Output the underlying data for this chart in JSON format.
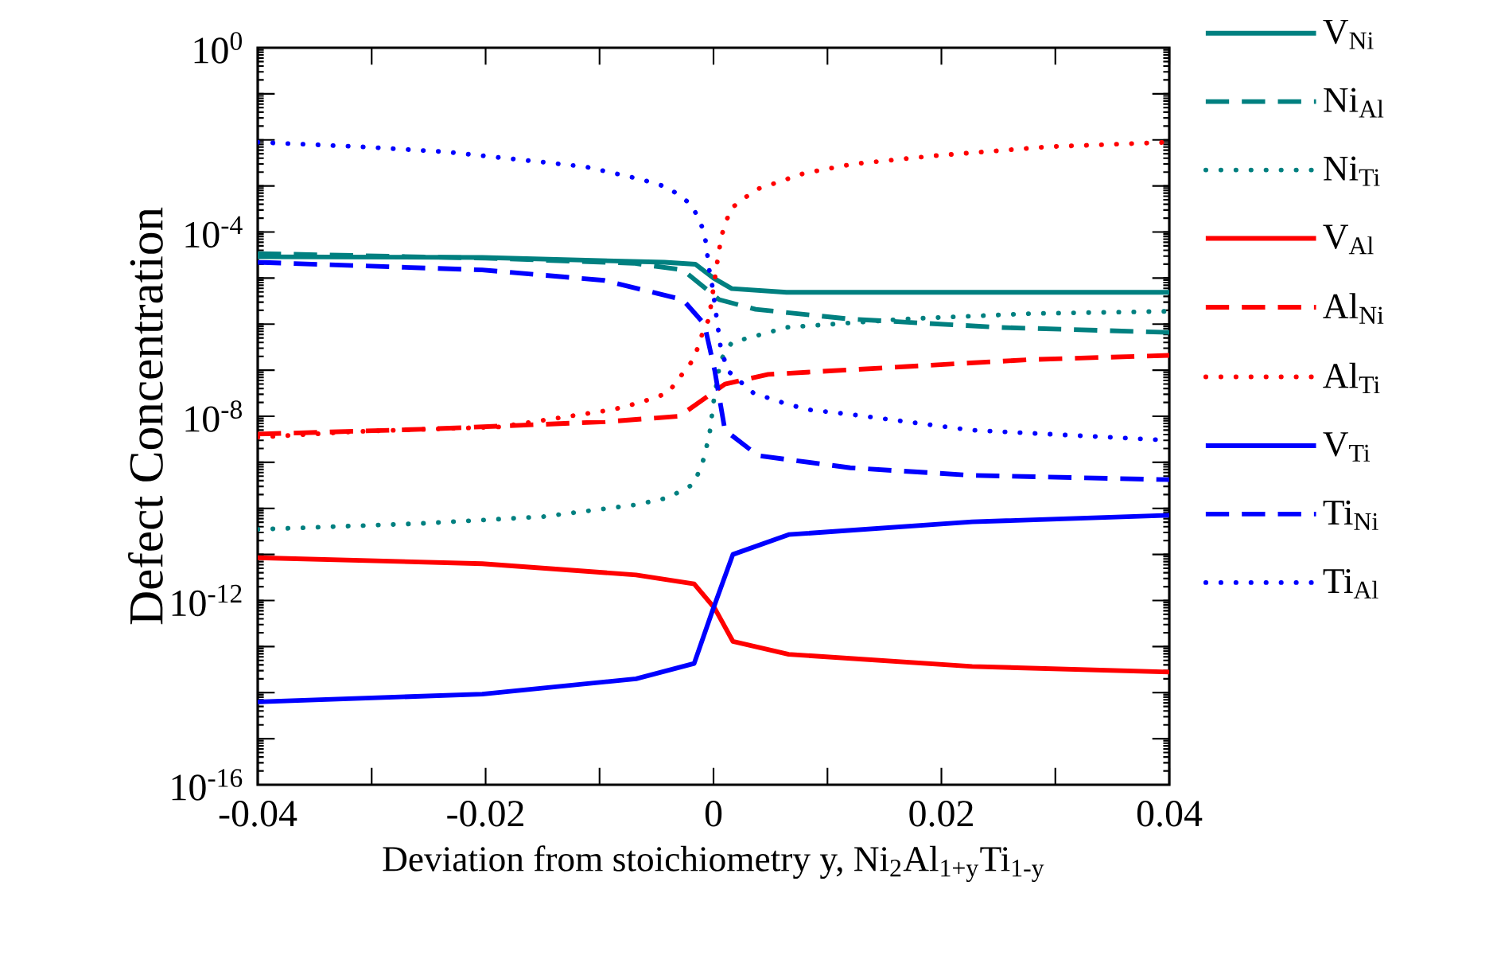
{
  "chart_data": {
    "type": "line",
    "xlabel": "Deviation from stoichiometry y, Ni$_{2}$Al$_{1+y}$Ti$_{1-y}$",
    "ylabel": "Defect Concentration",
    "log": true,
    "legend": "right",
    "xlim": [
      -0.04,
      0.04
    ],
    "xticks": [
      -0.04,
      {
        "value": -0.03,
        "label": null
      },
      -0.02,
      {
        "value": -0.01,
        "label": null
      },
      0,
      {
        "value": 0.01,
        "label": null
      },
      0.02,
      {
        "value": 0.03,
        "label": null
      },
      0.04
    ],
    "ylim": [
      1e-16,
      1
    ],
    "yticks": [
      {
        "value": 1e-16,
        "label": "10$^{-16}$"
      },
      {
        "value": 1e-15,
        "label": null
      },
      {
        "value": 1e-14,
        "label": null
      },
      {
        "value": 1e-13,
        "label": null
      },
      {
        "value": 1e-12,
        "label": "10$^{-12}$"
      },
      {
        "value": 1e-11,
        "label": null
      },
      {
        "value": 1e-10,
        "label": null
      },
      {
        "value": 1e-09,
        "label": null
      },
      {
        "value": 1e-08,
        "label": "10$^{-8}$"
      },
      {
        "value": 1e-07,
        "label": null
      },
      {
        "value": 1e-06,
        "label": null
      },
      {
        "value": 1e-05,
        "label": null
      },
      {
        "value": 0.0001,
        "label": "10$^{-4}$"
      },
      {
        "value": 0.001,
        "label": null
      },
      {
        "value": 0.01,
        "label": null
      },
      {
        "value": 0.1,
        "label": null
      },
      {
        "value": 1,
        "label": "10$^{0}$"
      }
    ],
    "series": [
      {
        "name": "V$_{Ni}$",
        "color": "#008080",
        "line_style": "solid",
        "x": [
          -0.04,
          -0.0203,
          -0.0043,
          -0.0016,
          0,
          0.0016,
          0.0064,
          0.04
        ],
        "values": [
          2.9e-05,
          2.8e-05,
          2.2e-05,
          2e-05,
          1e-05,
          5.9e-06,
          4.9e-06,
          4.9e-06
        ]
      },
      {
        "name": "Ni$_{Al}$",
        "color": "#008080",
        "line_style": "dashed",
        "x": [
          -0.04,
          -0.02,
          -0.007,
          -0.0027,
          0.0005,
          0.0037,
          0.0118,
          0.025,
          0.04
        ],
        "values": [
          3.4e-05,
          2.7e-05,
          2.1e-05,
          1.5e-05,
          3.4e-06,
          2.1e-06,
          1.3e-06,
          8.5e-07,
          6.6e-07
        ]
      },
      {
        "name": "Ni$_{Ti}$",
        "color": "#008080",
        "line_style": "dotted",
        "x": [
          -0.04,
          -0.0257,
          -0.015,
          -0.0068,
          -0.004,
          -0.0017,
          -0.0008,
          -0.0003,
          0,
          0.0006,
          0.0016,
          0.004,
          0.0064,
          0.017,
          0.028,
          0.04
        ],
        "values": [
          3.5e-11,
          4.7e-11,
          6.6e-11,
          1.2e-10,
          1.7e-10,
          3.4e-10,
          1.3e-09,
          5e-09,
          2e-08,
          1.6e-07,
          4e-07,
          5.8e-07,
          8.5e-07,
          1.3e-06,
          1.7e-06,
          1.9e-06
        ]
      },
      {
        "name": "V$_{Al}$",
        "color": "#ff0000",
        "line_style": "solid",
        "x": [
          -0.04,
          -0.0203,
          -0.0068,
          -0.0017,
          0.0001,
          0.0017,
          0.0066,
          0.0227,
          0.04
        ],
        "values": [
          8.5e-12,
          6.3e-12,
          3.6e-12,
          2.3e-12,
          6.8e-13,
          1.3e-13,
          6.8e-14,
          3.7e-14,
          2.8e-14
        ]
      },
      {
        "name": "Al$_{Ni}$",
        "color": "#ff0000",
        "line_style": "dashed",
        "x": [
          -0.04,
          -0.0257,
          -0.0095,
          -0.003,
          -0.0001,
          0.001,
          0.0048,
          0.017,
          0.0278,
          0.04
        ],
        "values": [
          4.1e-09,
          5.2e-09,
          7.6e-09,
          1e-08,
          3.2e-08,
          5e-08,
          8.1e-08,
          1.2e-07,
          1.7e-07,
          2.1e-07
        ]
      },
      {
        "name": "Al$_{Ti}$",
        "color": "#ff0000",
        "line_style": "dotted",
        "x": [
          -0.04,
          -0.031,
          -0.0187,
          -0.0088,
          -0.0064,
          -0.004,
          -0.0017,
          -0.0009,
          -0.0004,
          0.0003,
          0.0007,
          0.0015,
          0.0037,
          0.008,
          0.0123,
          0.0193,
          0.0294,
          0.04
        ],
        "values": [
          3.5e-09,
          4.7e-09,
          5.9e-09,
          1.4e-08,
          2e-08,
          3.2e-08,
          1.8e-07,
          7.1e-07,
          1.3e-06,
          2e-05,
          8.3e-05,
          0.00032,
          0.00083,
          0.0019,
          0.003,
          0.0045,
          0.0071,
          0.0089
        ]
      },
      {
        "name": "V$_{Ti}$",
        "color": "#0000ff",
        "line_style": "solid",
        "x": [
          -0.04,
          -0.0203,
          -0.0068,
          -0.0017,
          -0.0001,
          0.0017,
          0.0066,
          0.0227,
          0.04
        ],
        "values": [
          6.3e-15,
          9.3e-15,
          2e-14,
          4.3e-14,
          5.9e-13,
          1e-11,
          2.7e-11,
          5.1e-11,
          7.1e-11
        ]
      },
      {
        "name": "Ti$_{Ni}$",
        "color": "#0000ff",
        "line_style": "dashed",
        "x": [
          -0.04,
          -0.0203,
          -0.0096,
          -0.0027,
          -0.0008,
          0.0001,
          0.001,
          0.0039,
          0.012,
          0.0227,
          0.04
        ],
        "values": [
          2.2e-05,
          1.5e-05,
          8.9e-06,
          3.4e-06,
          1e-06,
          1e-07,
          5e-09,
          1.4e-09,
          7.6e-10,
          5.2e-10,
          4.2e-10
        ]
      },
      {
        "name": "Ti$_{Al}$",
        "color": "#0000ff",
        "line_style": "dotted",
        "x": [
          -0.04,
          -0.031,
          -0.0235,
          -0.016,
          -0.0112,
          -0.0064,
          -0.004,
          -0.0019,
          -0.0008,
          -0.0003,
          -0.0001,
          0.0006,
          0.0012,
          0.0035,
          0.006,
          0.0082,
          0.012,
          0.0226,
          0.04
        ],
        "values": [
          0.0089,
          0.0071,
          0.0055,
          0.0035,
          0.0026,
          0.0014,
          0.00093,
          0.00039,
          0.0001,
          1.1e-05,
          6.6e-06,
          3.5e-07,
          1e-07,
          3.2e-08,
          2e-08,
          1.4e-08,
          1.1e-08,
          5e-09,
          3e-09
        ]
      }
    ]
  }
}
